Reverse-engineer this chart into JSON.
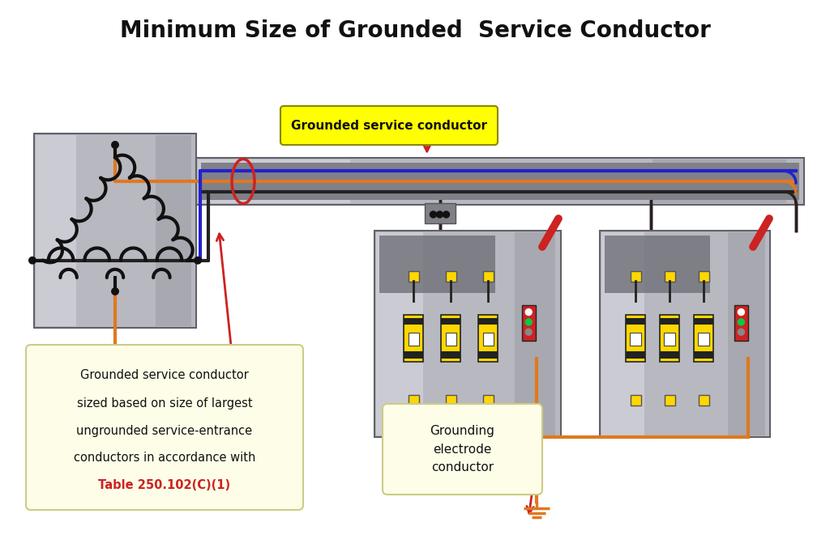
{
  "title": "Minimum Size of Grounded  Service Conductor",
  "title_fontsize": 20,
  "title_fontweight": "bold",
  "background_color": "#ffffff",
  "label_grounded_service": "Grounded service conductor",
  "label_grounding_electrode": "Grounding\nelectrode\nconductor",
  "label_bottom_line1": "Grounded service conductor",
  "label_bottom_line2": "sized based on size of largest",
  "label_bottom_line3": "ungrounded service-entrance",
  "label_bottom_line4": "conductors in accordance with",
  "label_bottom_line5": "Table 250.102(C)(1)",
  "color_orange": "#E07820",
  "color_blue": "#2222CC",
  "color_red": "#CC2222",
  "color_black": "#111111",
  "color_yellow": "#FFD700",
  "color_silver1": "#B8B8C0",
  "color_silver2": "#A0A0A8",
  "color_silver3": "#C8C8D0",
  "color_silver4": "#D8D8E0",
  "color_bg_box": "#FEFEE8",
  "color_yellow_label": "#FFFF00",
  "color_gray_dark": "#808088"
}
